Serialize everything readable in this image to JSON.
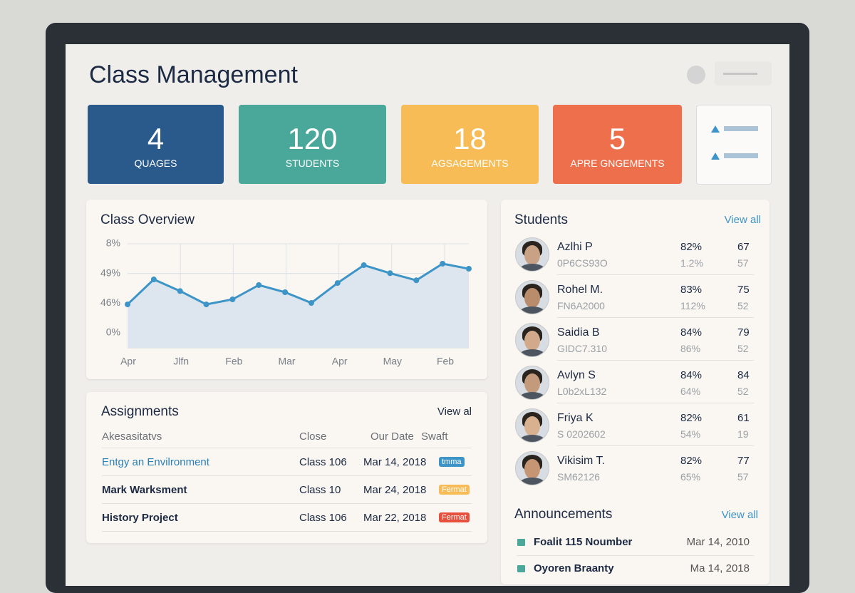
{
  "header": {
    "title": "Class Management"
  },
  "stats": [
    {
      "value": 4,
      "label": "QUAGES",
      "color": "#2a5a8c"
    },
    {
      "value": 120,
      "label": "STUDENTS",
      "color": "#4aa89a"
    },
    {
      "value": 18,
      "label": "AGSAGEMENTS",
      "color": "#f7bc55"
    },
    {
      "value": 5,
      "label": "APRE GNGEMENTS",
      "color": "#ee6f4c"
    }
  ],
  "chart": {
    "type": "line",
    "title": "Class Overview",
    "categories": [
      "Apr",
      "Jlfn",
      "Feb",
      "Mar",
      "Apr",
      "May",
      "Feb"
    ],
    "y_labels": [
      "0%",
      "46%",
      "49%",
      "8%"
    ],
    "values": [
      0.96,
      1.8,
      1.41,
      0.96,
      1.13,
      1.61,
      1.37,
      1.01,
      1.68,
      2.28,
      2.01,
      1.77,
      2.33,
      2.16
    ],
    "ylim": [
      -0.5,
      3
    ],
    "color": "#3d94c6",
    "grid": true
  },
  "students": {
    "title": "Students",
    "view_all": "View all",
    "rows": [
      {
        "name": "Azlhi P",
        "id": "0P6CS93O",
        "score": "82%",
        "score2": "1.2%",
        "grade": "67",
        "grade2": "57"
      },
      {
        "name": "Rohel M.",
        "id": "FN6A2000",
        "score": "83%",
        "score2": "112%",
        "grade": "75",
        "grade2": "52"
      },
      {
        "name": "Saidia B",
        "id": "GIDC7.310",
        "score": "84%",
        "score2": "86%",
        "grade": "79",
        "grade2": "52"
      },
      {
        "name": "Avlyn S",
        "id": "L0b2xL132",
        "score": "84%",
        "score2": "64%",
        "grade": "84",
        "grade2": "52"
      },
      {
        "name": "Friya K",
        "id": "S 0202602",
        "score": "82%",
        "score2": "54%",
        "grade": "61",
        "grade2": "19"
      },
      {
        "name": "Vikisim T.",
        "id": "SM62126",
        "score": "82%",
        "score2": "65%",
        "grade": "77",
        "grade2": "57"
      }
    ]
  },
  "assignments": {
    "title": "Assignments",
    "view_all": "View al",
    "columns": [
      "Akesasitatvs",
      "Close",
      "Our Date",
      "Swaft"
    ],
    "rows": [
      {
        "name": "Entgy an Envilronment",
        "class": "Class 106",
        "date": "Mar 14, 2018",
        "status": "tmma",
        "color": "#3d94c6"
      },
      {
        "name": "Mark Warksment",
        "class": "Class 10",
        "date": "Mar 24, 2018",
        "status": "Fermat",
        "color": "#f7bc55"
      },
      {
        "name": "History Project",
        "class": "Class 106",
        "date": "Mar 22, 2018",
        "status": "Fermat",
        "color": "#e7503c"
      }
    ]
  },
  "announcements": {
    "title": "Announcements",
    "view_all": "View all",
    "items": [
      {
        "title": "Foalit 115 Noumber",
        "date": "Mar 14, 2010"
      },
      {
        "title": "Oyoren Braanty",
        "date": "Ma 14, 2018"
      }
    ]
  }
}
